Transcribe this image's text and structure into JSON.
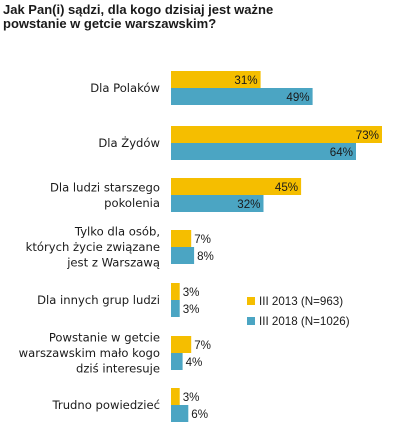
{
  "chart_data": {
    "type": "bar",
    "orientation": "horizontal",
    "title": "Jak Pan(i) sądzi, dla kogo dzisiaj jest ważne powstanie w getcie warszawskim?",
    "categories": [
      "Dla Polaków",
      "Dla Żydów",
      "Dla ludzi starszego pokolenia",
      "Tylko dla osób, których życie związane jest z Warszawą",
      "Dla innych grup ludzi",
      "Powstanie w getcie warszawskim mało kogo dziś interesuje",
      "Trudno powiedzieć"
    ],
    "series": [
      {
        "name": "III 2013 (N=963)",
        "color": "#F5BE00",
        "values": [
          31,
          73,
          45,
          7,
          3,
          7,
          3
        ]
      },
      {
        "name": "III 2018 (N=1026)",
        "color": "#4BA5C3",
        "values": [
          49,
          64,
          32,
          8,
          3,
          4,
          6
        ]
      }
    ],
    "value_suffix": "%",
    "xlim": [
      0,
      80
    ],
    "grid": false,
    "legend_position": "right"
  }
}
